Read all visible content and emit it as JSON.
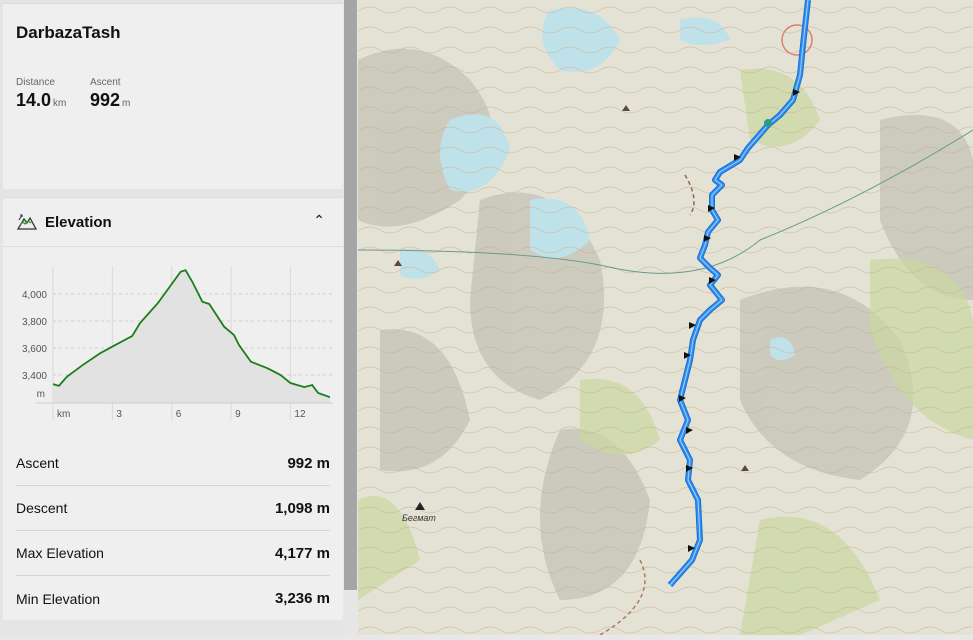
{
  "route": {
    "title": "DarbazaTash",
    "stats": [
      {
        "label": "Distance",
        "value": "14.0",
        "unit": "km"
      },
      {
        "label": "Ascent",
        "value": "992",
        "unit": "m"
      }
    ]
  },
  "elevation": {
    "title": "Elevation",
    "icon": "mountain-chart-icon",
    "collapse_icon": "chevron-up-icon",
    "rows": [
      {
        "label": "Ascent",
        "value": "992 m"
      },
      {
        "label": "Descent",
        "value": "1,098 m"
      },
      {
        "label": "Max Elevation",
        "value": "4,177 m"
      },
      {
        "label": "Min Elevation",
        "value": "3,236 m"
      }
    ]
  },
  "chart_data": {
    "type": "area",
    "xlabel": "km",
    "ylabel": "m",
    "xlim": [
      0,
      14
    ],
    "ylim": [
      3193,
      4177
    ],
    "x_ticks": [
      3,
      6,
      9,
      12
    ],
    "x_tick_labels": [
      "3",
      "6",
      "9",
      "12"
    ],
    "y_ticks": [
      3400,
      3600,
      3800,
      4000
    ],
    "y_tick_labels": [
      "3,400",
      "3,600",
      "3,800",
      "4,000"
    ],
    "grid": true,
    "line_color": "#1a7f1a",
    "x": [
      0,
      0.3,
      0.7,
      1.5,
      2.4,
      3.05,
      4.0,
      4.4,
      5.3,
      5.9,
      6.45,
      6.7,
      7.04,
      7.55,
      7.9,
      8.65,
      9.15,
      9.4,
      10,
      10.85,
      11.5,
      12.0,
      12.7,
      13.1,
      13.4,
      14.0
    ],
    "y": [
      3333,
      3320,
      3387,
      3474,
      3563,
      3615,
      3689,
      3785,
      3933,
      4054,
      4165,
      4177,
      4091,
      3943,
      3926,
      3758,
      3696,
      3622,
      3499,
      3450,
      3400,
      3341,
      3311,
      3326,
      3267,
      3236
    ]
  },
  "map": {
    "place_label": "Бегмат",
    "route_color": "#2f8ff0"
  }
}
